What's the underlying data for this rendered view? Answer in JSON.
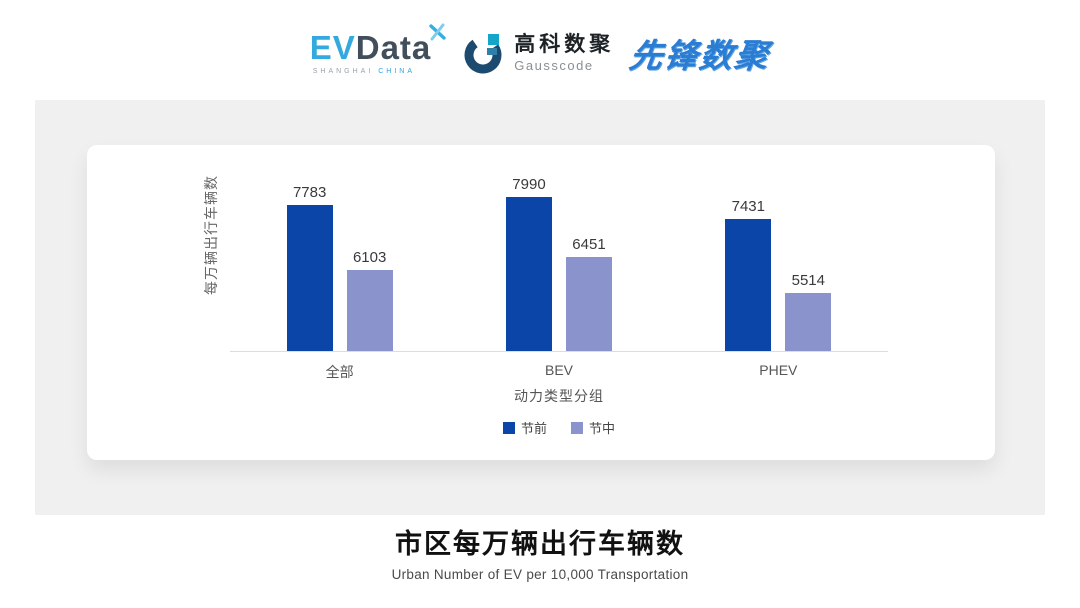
{
  "header": {
    "evdata": {
      "ev": "EV",
      "data": "Data",
      "sub_left": "SHANGHAI",
      "sub_right": "CHINA"
    },
    "gausscode": {
      "cn": "高科数聚",
      "en": "Gausscode"
    },
    "xianfeng": "先锋数聚"
  },
  "chart_data": {
    "type": "bar",
    "title": "市区每万辆出行车辆数",
    "subtitle": "Urban Number of EV per 10,000 Transportation",
    "categories": [
      "全部",
      "BEV",
      "PHEV"
    ],
    "series": [
      {
        "name": "节前",
        "color": "#0B45A8",
        "values": [
          7783,
          7990,
          7431
        ]
      },
      {
        "name": "节中",
        "color": "#8A93CC",
        "values": [
          6103,
          6451,
          5514
        ]
      }
    ],
    "xlabel": "动力类型分组",
    "ylabel": "每万辆出行车辆数",
    "ylim": [
      4000,
      8000
    ],
    "grid": false,
    "value_labels": true,
    "legend_position": "bottom"
  }
}
